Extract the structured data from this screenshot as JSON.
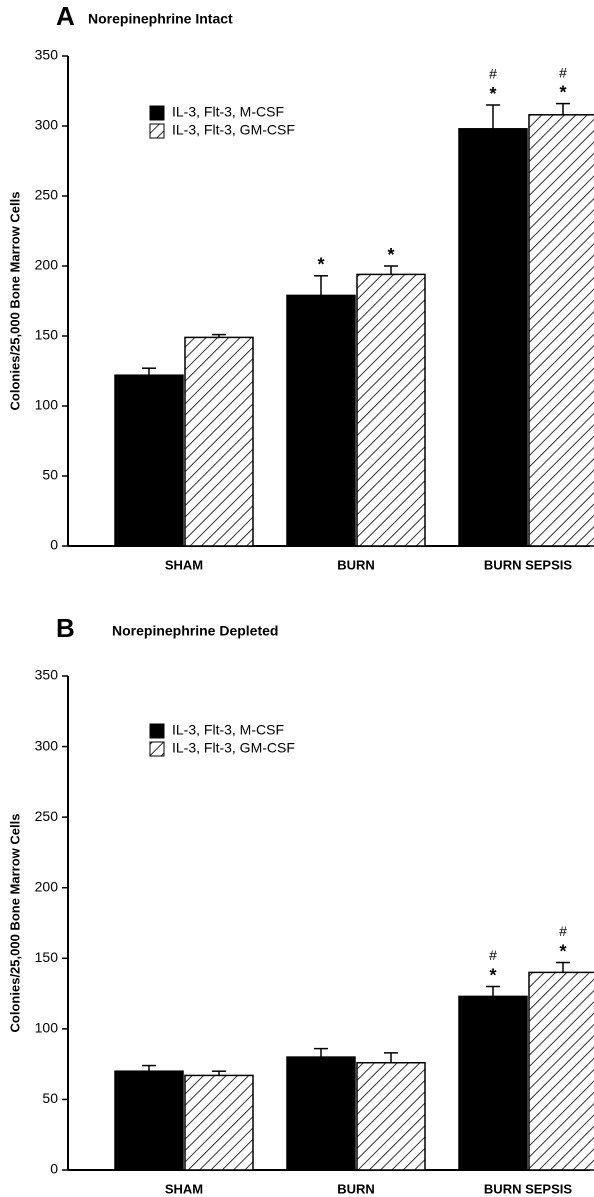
{
  "chart_data": [
    {
      "type": "bar",
      "panel": "A",
      "title": "Norepinephrine Intact",
      "y_label": "Colonies/25,000 Bone Marrow Cells",
      "categories": [
        "SHAM",
        "BURN",
        "BURN SEPSIS"
      ],
      "series": [
        {
          "name": "IL-3, Flt-3, M-CSF",
          "color": "#000000",
          "hatch": false,
          "values": [
            122,
            179,
            298
          ],
          "errors": [
            5,
            14,
            17
          ],
          "star_labels": [
            null,
            "*",
            "*"
          ],
          "hash_labels": [
            null,
            null,
            "#"
          ]
        },
        {
          "name": "IL-3, Flt-3, GM-CSF",
          "color": "#000000",
          "hatch": true,
          "values": [
            149,
            194,
            308
          ],
          "errors": [
            2,
            6,
            8
          ],
          "star_labels": [
            null,
            "*",
            "*"
          ],
          "hash_labels": [
            null,
            null,
            "#"
          ]
        }
      ],
      "ylim": [
        0,
        350
      ],
      "yticks": [
        0,
        50,
        100,
        150,
        200,
        250,
        300,
        350
      ],
      "grid": false
    },
    {
      "type": "bar",
      "panel": "B",
      "title": "Norepinephrine Depleted",
      "y_label": "Colonies/25,000 Bone Marrow Cells",
      "categories": [
        "SHAM",
        "BURN",
        "BURN SEPSIS"
      ],
      "series": [
        {
          "name": "IL-3, Flt-3, M-CSF",
          "color": "#000000",
          "hatch": false,
          "values": [
            70,
            80,
            123
          ],
          "errors": [
            4,
            6,
            7
          ],
          "star_labels": [
            null,
            null,
            "*"
          ],
          "hash_labels": [
            null,
            null,
            "#"
          ]
        },
        {
          "name": "IL-3, Flt-3, GM-CSF",
          "color": "#000000",
          "hatch": true,
          "values": [
            67,
            76,
            140
          ],
          "errors": [
            3,
            7,
            7
          ],
          "star_labels": [
            null,
            null,
            "*"
          ],
          "hash_labels": [
            null,
            null,
            "#"
          ]
        }
      ],
      "ylim": [
        0,
        350
      ],
      "yticks": [
        0,
        50,
        100,
        150,
        200,
        250,
        300,
        350
      ],
      "grid": false
    }
  ]
}
